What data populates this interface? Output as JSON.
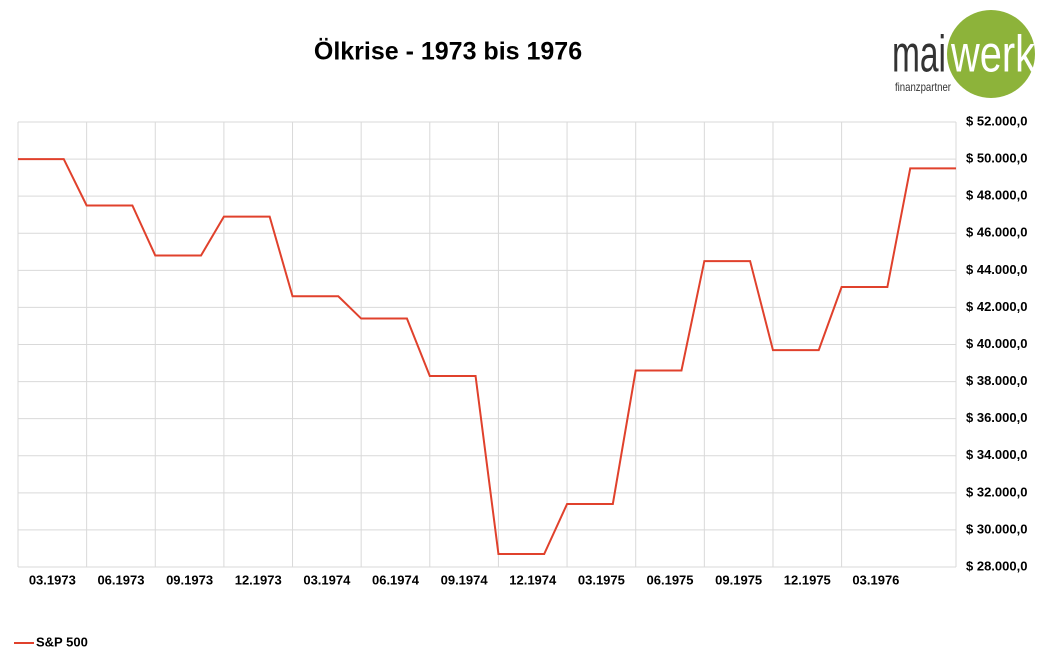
{
  "chart_data": {
    "type": "line",
    "title": "Ölkrise - 1973 bis 1976",
    "categories": [
      "03.1973",
      null,
      null,
      "06.1973",
      null,
      null,
      "09.1973",
      null,
      null,
      "12.1973",
      null,
      null,
      "03.1974",
      null,
      null,
      "06.1974",
      null,
      null,
      "09.1974",
      null,
      null,
      "12.1974",
      null,
      null,
      "03.1975",
      null,
      null,
      "06.1975",
      null,
      null,
      "09.1975",
      null,
      null,
      "12.1975",
      null,
      null,
      "03.1976",
      null,
      null,
      null,
      null,
      null
    ],
    "series": [
      {
        "name": "S&P 500",
        "color": "#e0412c",
        "values": [
          50000,
          50000,
          50000,
          47500,
          47500,
          47500,
          44800,
          44800,
          44800,
          46900,
          46900,
          46900,
          42600,
          42600,
          42600,
          41400,
          41400,
          41400,
          38300,
          38300,
          38300,
          28700,
          28700,
          28700,
          31400,
          31400,
          31400,
          38600,
          38600,
          38600,
          44500,
          44500,
          44500,
          39700,
          39700,
          39700,
          43100,
          43100,
          43100,
          49500,
          49500,
          49500
        ]
      }
    ],
    "ylim": [
      28000,
      52000
    ],
    "yticks": [
      {
        "value": 28000,
        "label": "$ 28.000,0"
      },
      {
        "value": 30000,
        "label": "$ 30.000,0"
      },
      {
        "value": 32000,
        "label": "$ 32.000,0"
      },
      {
        "value": 34000,
        "label": "$ 34.000,0"
      },
      {
        "value": 36000,
        "label": "$ 36.000,0"
      },
      {
        "value": 38000,
        "label": "$ 38.000,0"
      },
      {
        "value": 40000,
        "label": "$ 40.000,0"
      },
      {
        "value": 42000,
        "label": "$ 42.000,0"
      },
      {
        "value": 44000,
        "label": "$ 44.000,0"
      },
      {
        "value": 46000,
        "label": "$ 46.000,0"
      },
      {
        "value": 48000,
        "label": "$ 48.000,0"
      },
      {
        "value": 50000,
        "label": "$ 50.000,0"
      },
      {
        "value": 52000,
        "label": "$ 52.000,0"
      }
    ],
    "grid": true,
    "y_axis_side": "right",
    "legend": "bottom-left"
  },
  "logo": {
    "brand_left": "mai",
    "brand_right": "werk",
    "tagline": "finanzpartner"
  }
}
